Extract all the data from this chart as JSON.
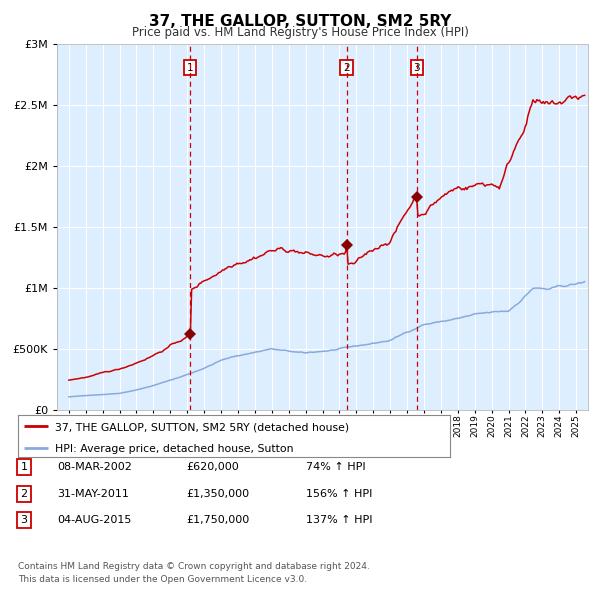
{
  "title": "37, THE GALLOP, SUTTON, SM2 5RY",
  "subtitle": "Price paid vs. HM Land Registry's House Price Index (HPI)",
  "background_color": "#ddeeff",
  "plot_bg_color": "#ddeeff",
  "hpi_line_color": "#88aadd",
  "price_line_color": "#cc0000",
  "marker_color": "#880000",
  "vline_color": "#cc0000",
  "grid_color": "#ffffff",
  "ylim": [
    0,
    3000000
  ],
  "yticks": [
    0,
    500000,
    1000000,
    1500000,
    2000000,
    2500000,
    3000000
  ],
  "x_start_year": 1995,
  "x_end_year": 2025,
  "transactions": [
    {
      "label": "1",
      "date": "08-MAR-2002",
      "year": 2002.17,
      "price": 620000,
      "pct": "74%",
      "dir": "↑"
    },
    {
      "label": "2",
      "date": "31-MAY-2011",
      "year": 2011.42,
      "price": 1350000,
      "pct": "156%",
      "dir": "↑"
    },
    {
      "label": "3",
      "date": "04-AUG-2015",
      "year": 2015.58,
      "price": 1750000,
      "pct": "137%",
      "dir": "↑"
    }
  ],
  "legend_line1": "37, THE GALLOP, SUTTON, SM2 5RY (detached house)",
  "legend_line2": "HPI: Average price, detached house, Sutton",
  "footnote1": "Contains HM Land Registry data © Crown copyright and database right 2024.",
  "footnote2": "This data is licensed under the Open Government Licence v3.0."
}
